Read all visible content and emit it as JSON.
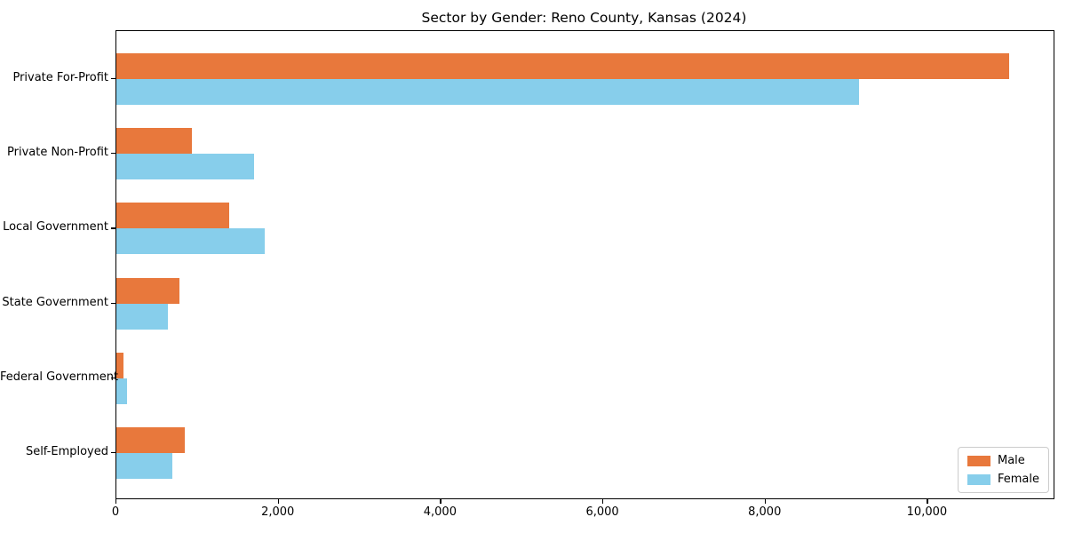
{
  "chart_data": {
    "type": "bar",
    "orientation": "horizontal",
    "title": "Sector by Gender: Reno County, Kansas (2024)",
    "categories": [
      "Private For-Profit",
      "Private Non-Profit",
      "Local Government",
      "State Government",
      "Federal Government",
      "Self-Employed"
    ],
    "series": [
      {
        "name": "Male",
        "color": "#e8783c",
        "values": [
          11000,
          930,
          1390,
          775,
          90,
          845
        ]
      },
      {
        "name": "Female",
        "color": "#87ceeb",
        "values": [
          9150,
          1700,
          1825,
          640,
          130,
          690
        ]
      }
    ],
    "xlabel": "",
    "ylabel": "",
    "xlim": [
      0,
      11550
    ],
    "xticks": [
      0,
      2000,
      4000,
      6000,
      8000,
      10000
    ],
    "xtick_labels": [
      "0",
      "2,000",
      "4,000",
      "6,000",
      "8,000",
      "10,000"
    ],
    "grid": false,
    "legend": {
      "position": "lower right",
      "entries": [
        "Male",
        "Female"
      ]
    },
    "colors": {
      "spine": "#000000",
      "text": "#000000",
      "legend_border": "#cccccc",
      "background": "#ffffff"
    }
  }
}
